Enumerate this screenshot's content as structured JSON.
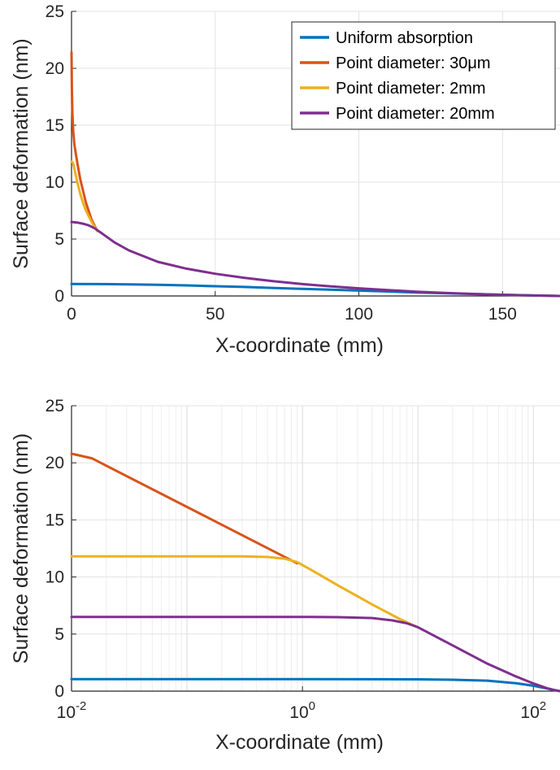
{
  "chart_data": [
    {
      "type": "line",
      "xscale": "linear",
      "xlabel": "X-coordinate (mm)",
      "ylabel": "Surface deformation (nm)",
      "xlim": [
        0,
        170
      ],
      "ylim": [
        0,
        25
      ],
      "xticks": [
        0,
        50,
        100,
        150
      ],
      "xtick_labels": [
        "0",
        "50",
        "100",
        "150"
      ],
      "yticks": [
        0,
        5,
        10,
        15,
        20,
        25
      ],
      "ytick_labels": [
        "0",
        "5",
        "10",
        "15",
        "20",
        "25"
      ],
      "grid": true,
      "legend_position": "top-right",
      "legend": [
        "Uniform absorption",
        "Point diameter: 30μm",
        "Point diameter: 2mm",
        "Point diameter: 20mm"
      ],
      "series": [
        {
          "name": "Uniform absorption",
          "color": "#0072BD",
          "x": [
            0,
            10,
            20,
            30,
            40,
            50,
            60,
            70,
            80,
            90,
            100,
            110,
            120,
            130,
            140,
            150,
            160,
            170
          ],
          "y": [
            1.05,
            1.04,
            1.02,
            0.98,
            0.93,
            0.86,
            0.79,
            0.71,
            0.63,
            0.55,
            0.47,
            0.39,
            0.31,
            0.24,
            0.17,
            0.11,
            0.05,
            0.0
          ]
        },
        {
          "name": "Point diameter: 30μm",
          "color": "#D95319",
          "x": [
            0,
            0.1,
            0.3,
            0.6,
            1,
            2,
            3,
            5,
            7,
            9
          ],
          "y": [
            21.4,
            18.4,
            16.0,
            14.5,
            13.3,
            11.7,
            10.3,
            8.2,
            6.7,
            5.7
          ]
        },
        {
          "name": "Point diameter: 2mm",
          "color": "#EDB120",
          "x": [
            0,
            0.5,
            1,
            2,
            3,
            4,
            5,
            7,
            9
          ],
          "y": [
            11.8,
            11.7,
            11.2,
            10.0,
            9.0,
            8.2,
            7.5,
            6.5,
            5.7
          ]
        },
        {
          "name": "Point diameter: 20mm",
          "color": "#7E2F8E",
          "x": [
            0,
            2,
            4,
            6,
            8,
            10,
            15,
            20,
            30,
            40,
            50,
            60,
            70,
            80,
            90,
            100,
            110,
            120,
            130,
            140,
            150,
            160,
            170
          ],
          "y": [
            6.5,
            6.45,
            6.35,
            6.2,
            5.95,
            5.6,
            4.7,
            4.0,
            3.0,
            2.4,
            1.95,
            1.6,
            1.3,
            1.05,
            0.85,
            0.67,
            0.52,
            0.38,
            0.27,
            0.18,
            0.1,
            0.04,
            0.0
          ]
        }
      ]
    },
    {
      "type": "line",
      "xscale": "log",
      "xlabel": "X-coordinate (mm)",
      "ylabel": "Surface deformation (nm)",
      "xlim": [
        0.01,
        170
      ],
      "ylim": [
        0,
        25
      ],
      "xticks": [
        0.01,
        1,
        100
      ],
      "xtick_labels": [
        {
          "base": "10",
          "exp": "-2"
        },
        {
          "base": "10",
          "exp": "0"
        },
        {
          "base": "10",
          "exp": "2"
        }
      ],
      "yticks": [
        0,
        5,
        10,
        15,
        20,
        25
      ],
      "ytick_labels": [
        "0",
        "5",
        "10",
        "15",
        "20",
        "25"
      ],
      "grid": true,
      "series": [
        {
          "name": "Uniform absorption",
          "color": "#0072BD",
          "x": [
            0.01,
            0.1,
            1,
            5,
            10,
            20,
            40,
            70,
            100,
            130,
            150,
            170
          ],
          "y": [
            1.05,
            1.05,
            1.05,
            1.04,
            1.03,
            1.0,
            0.92,
            0.7,
            0.47,
            0.24,
            0.11,
            0.0
          ]
        },
        {
          "name": "Point diameter: 30μm",
          "color": "#D95319",
          "x": [
            0.01,
            0.015,
            0.9
          ],
          "y": [
            20.8,
            20.4,
            11.2
          ]
        },
        {
          "name": "Point diameter: 2mm",
          "color": "#EDB120",
          "x": [
            0.01,
            0.1,
            0.3,
            0.5,
            0.7,
            0.9,
            1.2,
            2,
            4,
            7,
            9.5
          ],
          "y": [
            11.8,
            11.8,
            11.8,
            11.75,
            11.6,
            11.3,
            10.6,
            9.3,
            7.6,
            6.3,
            5.7
          ]
        },
        {
          "name": "Point diameter: 20mm",
          "color": "#7E2F8E",
          "x": [
            0.01,
            0.1,
            1,
            2,
            4,
            6,
            8,
            10,
            20,
            40,
            70,
            100,
            130,
            150,
            170
          ],
          "y": [
            6.5,
            6.5,
            6.5,
            6.48,
            6.4,
            6.2,
            5.95,
            5.6,
            4.0,
            2.4,
            1.3,
            0.67,
            0.27,
            0.1,
            0.0
          ]
        }
      ]
    }
  ]
}
